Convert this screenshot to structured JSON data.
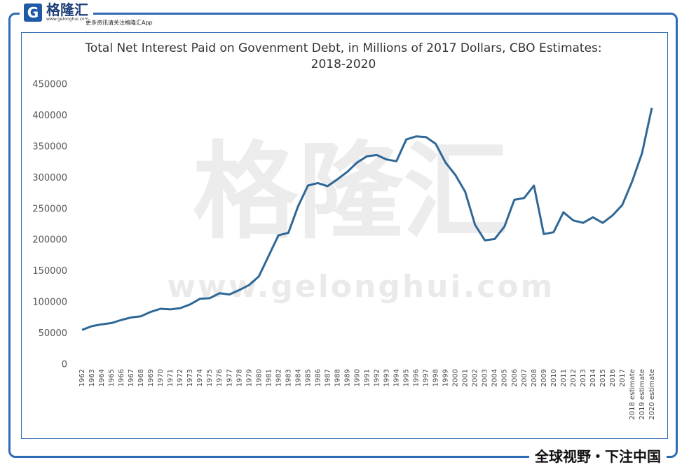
{
  "brand": {
    "logo": "格隆汇",
    "logo_url": "www.gelonghui.com",
    "tagline": "更多资讯请关注格隆汇App",
    "slogan": "全球视野・下注中国",
    "watermark": "格隆汇",
    "watermark_url": "www.gelonghui.com"
  },
  "chart_data": {
    "type": "line",
    "title": "Total Net Interest Paid on Govenment Debt, in Millions of 2017 Dollars, CBO Estimates: 2018-2020",
    "categories": [
      "1962",
      "1963",
      "1964",
      "1965",
      "1966",
      "1967",
      "1968",
      "1969",
      "1970",
      "1971",
      "1972",
      "1973",
      "1974",
      "1975",
      "1976",
      "1977",
      "1978",
      "1979",
      "1980",
      "1981",
      "1982",
      "1983",
      "1984",
      "1985",
      "1986",
      "1987",
      "1988",
      "1989",
      "1990",
      "1991",
      "1992",
      "1993",
      "1994",
      "1995",
      "1996",
      "1997",
      "1998",
      "1999",
      "2000",
      "2001",
      "2002",
      "2003",
      "2004",
      "2005",
      "2006",
      "2007",
      "2008",
      "2009",
      "2010",
      "2011",
      "2012",
      "2013",
      "2014",
      "2015",
      "2016",
      "2017",
      "2018 estimate",
      "2019 estimate",
      "2020 estimate"
    ],
    "values": [
      56000,
      62000,
      65000,
      67000,
      72000,
      76000,
      78000,
      85000,
      90000,
      89000,
      91000,
      97000,
      106000,
      107000,
      115000,
      113000,
      120000,
      128000,
      142000,
      175000,
      208000,
      212000,
      255000,
      288000,
      292000,
      287000,
      298000,
      310000,
      325000,
      335000,
      337000,
      330000,
      327000,
      362000,
      367000,
      366000,
      355000,
      325000,
      305000,
      278000,
      225000,
      200000,
      202000,
      222000,
      265000,
      268000,
      288000,
      210000,
      213000,
      245000,
      232000,
      228000,
      237000,
      228000,
      240000,
      257000,
      295000,
      340000,
      413000
    ],
    "color": "#2f6896",
    "ylim": [
      0,
      450000
    ],
    "yticks": [
      0,
      50000,
      100000,
      150000,
      200000,
      250000,
      300000,
      350000,
      400000,
      450000
    ],
    "grid": false
  }
}
